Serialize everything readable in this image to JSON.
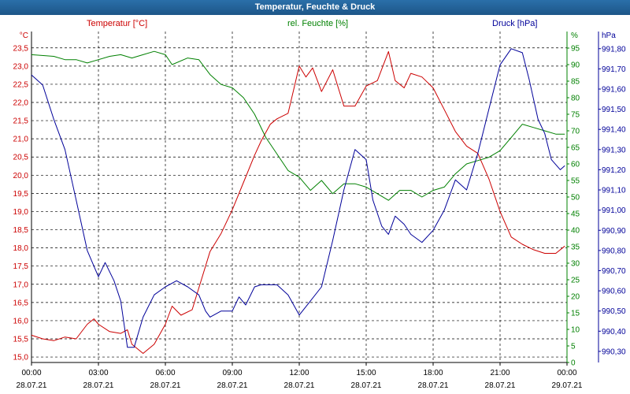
{
  "title": "Temperatur, Feuchte & Druck",
  "colors": {
    "temperature": "#cc0000",
    "humidity": "#008000",
    "pressure": "#000099",
    "grid": "#000000",
    "title_bg": "#2266a0"
  },
  "legend": {
    "temperature": "Temperatur [°C]",
    "humidity": "rel. Feuchte [%]",
    "pressure": "Druck [hPa]"
  },
  "axes": {
    "left_unit": "°C",
    "right1_unit": "%",
    "right2_unit": "hPa",
    "temp_ticks": [
      "15,0",
      "15,5",
      "16,0",
      "16,5",
      "17,0",
      "17,5",
      "18,0",
      "18,5",
      "19,0",
      "19,5",
      "20,0",
      "20,5",
      "21,0",
      "21,5",
      "22,0",
      "22,5",
      "23,0",
      "23,5"
    ],
    "hum_ticks": [
      "0",
      "5",
      "10",
      "15",
      "20",
      "25",
      "30",
      "35",
      "40",
      "45",
      "50",
      "55",
      "60",
      "65",
      "70",
      "75",
      "80",
      "85",
      "90",
      "95"
    ],
    "press_ticks": [
      "990,30",
      "990,40",
      "990,50",
      "990,60",
      "990,70",
      "990,80",
      "990,90",
      "991,00",
      "991,10",
      "991,20",
      "991,30",
      "991,40",
      "991,50",
      "991,60",
      "991,70",
      "991,80"
    ],
    "x_time_labels": [
      "00:00",
      "03:00",
      "06:00",
      "09:00",
      "12:00",
      "15:00",
      "18:00",
      "21:00",
      "00:00"
    ],
    "x_date_labels": [
      "28.07.21",
      "28.07.21",
      "28.07.21",
      "28.07.21",
      "28.07.21",
      "28.07.21",
      "28.07.21",
      "28.07.21",
      "29.07.21"
    ]
  },
  "chart_data": {
    "type": "line",
    "title": "Temperatur, Feuchte & Druck",
    "x_unit": "hours since 28.07.21 00:00",
    "xlim": [
      0,
      24
    ],
    "grid": true,
    "series": [
      {
        "name": "Temperatur [°C]",
        "axis": "left",
        "ylim": [
          14.85,
          23.95
        ],
        "points": [
          [
            0,
            15.6
          ],
          [
            0.5,
            15.5
          ],
          [
            1,
            15.45
          ],
          [
            1.5,
            15.55
          ],
          [
            2,
            15.5
          ],
          [
            2.5,
            15.9
          ],
          [
            2.8,
            16.05
          ],
          [
            3,
            15.9
          ],
          [
            3.5,
            15.7
          ],
          [
            4,
            15.65
          ],
          [
            4.3,
            15.75
          ],
          [
            4.5,
            15.35
          ],
          [
            5,
            15.1
          ],
          [
            5.5,
            15.35
          ],
          [
            6,
            15.9
          ],
          [
            6.3,
            16.4
          ],
          [
            6.7,
            16.15
          ],
          [
            7.2,
            16.3
          ],
          [
            7.5,
            16.9
          ],
          [
            8,
            17.9
          ],
          [
            8.5,
            18.4
          ],
          [
            9,
            19.05
          ],
          [
            9.5,
            19.8
          ],
          [
            10,
            20.55
          ],
          [
            10.3,
            20.95
          ],
          [
            10.7,
            21.4
          ],
          [
            11,
            21.55
          ],
          [
            11.5,
            21.7
          ],
          [
            12,
            23.0
          ],
          [
            12.3,
            22.7
          ],
          [
            12.6,
            22.95
          ],
          [
            13,
            22.3
          ],
          [
            13.5,
            22.9
          ],
          [
            14,
            21.9
          ],
          [
            14.5,
            21.9
          ],
          [
            15,
            22.45
          ],
          [
            15.5,
            22.6
          ],
          [
            16,
            23.4
          ],
          [
            16.3,
            22.6
          ],
          [
            16.7,
            22.4
          ],
          [
            17,
            22.8
          ],
          [
            17.5,
            22.7
          ],
          [
            18,
            22.4
          ],
          [
            18.5,
            21.8
          ],
          [
            19,
            21.2
          ],
          [
            19.5,
            20.8
          ],
          [
            20,
            20.6
          ],
          [
            20.5,
            19.9
          ],
          [
            21,
            19.0
          ],
          [
            21.5,
            18.3
          ],
          [
            22,
            18.1
          ],
          [
            22.5,
            17.95
          ],
          [
            23,
            17.85
          ],
          [
            23.5,
            17.85
          ],
          [
            23.9,
            18.05
          ]
        ]
      },
      {
        "name": "rel. Feuchte [%]",
        "axis": "right1",
        "ylim": [
          0,
          100
        ],
        "points": [
          [
            0,
            93
          ],
          [
            1,
            92.5
          ],
          [
            1.5,
            91.5
          ],
          [
            2,
            91.5
          ],
          [
            2.5,
            90.5
          ],
          [
            3,
            91.5
          ],
          [
            3.5,
            92.5
          ],
          [
            4,
            93
          ],
          [
            4.5,
            92
          ],
          [
            5,
            93
          ],
          [
            5.5,
            94
          ],
          [
            6,
            93
          ],
          [
            6.3,
            90
          ],
          [
            7,
            92
          ],
          [
            7.5,
            91.5
          ],
          [
            8,
            87
          ],
          [
            8.5,
            84
          ],
          [
            9,
            83
          ],
          [
            9.5,
            80
          ],
          [
            10,
            75
          ],
          [
            10.5,
            68
          ],
          [
            11,
            63
          ],
          [
            11.5,
            58
          ],
          [
            12,
            56
          ],
          [
            12.5,
            52
          ],
          [
            13,
            55
          ],
          [
            13.5,
            51
          ],
          [
            14,
            54
          ],
          [
            14.5,
            54
          ],
          [
            15,
            53
          ],
          [
            15.5,
            51
          ],
          [
            16,
            49
          ],
          [
            16.5,
            52
          ],
          [
            17,
            52
          ],
          [
            17.5,
            50
          ],
          [
            18,
            52
          ],
          [
            18.5,
            53
          ],
          [
            19,
            57
          ],
          [
            19.5,
            60
          ],
          [
            20,
            61
          ],
          [
            20.5,
            62
          ],
          [
            21,
            64
          ],
          [
            21.5,
            68
          ],
          [
            22,
            72
          ],
          [
            22.5,
            71
          ],
          [
            23,
            70
          ],
          [
            23.5,
            69
          ],
          [
            23.9,
            69
          ]
        ]
      },
      {
        "name": "Druck [hPa]",
        "axis": "right2",
        "ylim": [
          990.245,
          991.885
        ],
        "points": [
          [
            0,
            991.67
          ],
          [
            0.5,
            991.62
          ],
          [
            1,
            991.45
          ],
          [
            1.5,
            991.3
          ],
          [
            2,
            991.05
          ],
          [
            2.5,
            990.8
          ],
          [
            3,
            990.67
          ],
          [
            3.3,
            990.74
          ],
          [
            3.7,
            990.65
          ],
          [
            4,
            990.55
          ],
          [
            4.3,
            990.32
          ],
          [
            4.6,
            990.32
          ],
          [
            5,
            990.47
          ],
          [
            5.5,
            990.58
          ],
          [
            6,
            990.62
          ],
          [
            6.5,
            990.65
          ],
          [
            7,
            990.62
          ],
          [
            7.5,
            990.58
          ],
          [
            7.8,
            990.5
          ],
          [
            8,
            990.47
          ],
          [
            8.5,
            990.5
          ],
          [
            9,
            990.5
          ],
          [
            9.3,
            990.57
          ],
          [
            9.6,
            990.53
          ],
          [
            10,
            990.62
          ],
          [
            10.3,
            990.63
          ],
          [
            10.7,
            990.63
          ],
          [
            11,
            990.63
          ],
          [
            11.5,
            990.58
          ],
          [
            12,
            990.48
          ],
          [
            12.5,
            990.55
          ],
          [
            13,
            990.62
          ],
          [
            13.5,
            990.85
          ],
          [
            14,
            991.1
          ],
          [
            14.5,
            991.3
          ],
          [
            15,
            991.25
          ],
          [
            15.3,
            991.05
          ],
          [
            15.7,
            990.92
          ],
          [
            16,
            990.88
          ],
          [
            16.3,
            990.97
          ],
          [
            16.7,
            990.93
          ],
          [
            17,
            990.88
          ],
          [
            17.5,
            990.84
          ],
          [
            18,
            990.9
          ],
          [
            18.5,
            991.0
          ],
          [
            19,
            991.15
          ],
          [
            19.5,
            991.1
          ],
          [
            20,
            991.28
          ],
          [
            20.5,
            991.5
          ],
          [
            21,
            991.72
          ],
          [
            21.5,
            991.8
          ],
          [
            22,
            991.78
          ],
          [
            22.3,
            991.65
          ],
          [
            22.7,
            991.45
          ],
          [
            23,
            991.38
          ],
          [
            23.3,
            991.25
          ],
          [
            23.7,
            991.2
          ],
          [
            23.9,
            991.22
          ]
        ]
      }
    ]
  }
}
